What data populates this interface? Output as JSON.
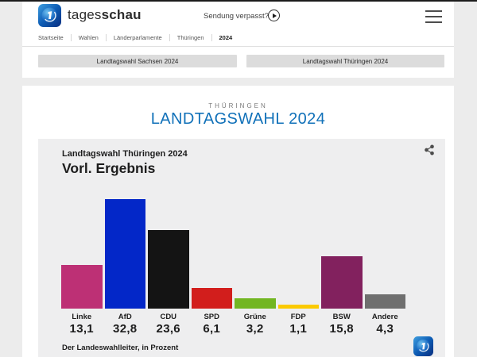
{
  "page": {
    "top_bar_color": "#1b1b1b",
    "background": "#ececec",
    "accent_blue": "#1171b9"
  },
  "header": {
    "brand": {
      "regular": "tages",
      "bold": "schau"
    },
    "sendung_verpasst_label": "Sendung verpasst?",
    "breadcrumbs": [
      "Startseite",
      "Wahlen",
      "Länderparlamente",
      "Thüringen",
      "2024"
    ]
  },
  "nav_buttons": [
    {
      "label": "Landtagswahl Sachsen 2024"
    },
    {
      "label": "Landtagswahl Thüringen 2024"
    }
  ],
  "main": {
    "kicker": "THÜRINGEN",
    "title": "LANDTAGSWAHL 2024"
  },
  "chart_data": {
    "type": "bar",
    "title": "Landtagswahl Thüringen 2024",
    "subtitle": "Vorl. Ergebnis",
    "categories": [
      "Linke",
      "AfD",
      "CDU",
      "SPD",
      "Grüne",
      "FDP",
      "BSW",
      "Andere"
    ],
    "values": [
      13.1,
      32.8,
      23.6,
      6.1,
      3.2,
      1.1,
      15.8,
      4.3
    ],
    "value_labels": [
      "13,1",
      "32,8",
      "23,6",
      "6,1",
      "3,2",
      "1,1",
      "15,8",
      "4,3"
    ],
    "colors": [
      "#bd3075",
      "#0327c8",
      "#141414",
      "#d21e1c",
      "#72b622",
      "#fbca00",
      "#82215e",
      "#6f6f6f"
    ],
    "unit": "Prozent",
    "source": "Der Landeswahlleiter, in Prozent",
    "ylim": [
      0,
      33
    ],
    "grid": false,
    "legend": "none"
  }
}
